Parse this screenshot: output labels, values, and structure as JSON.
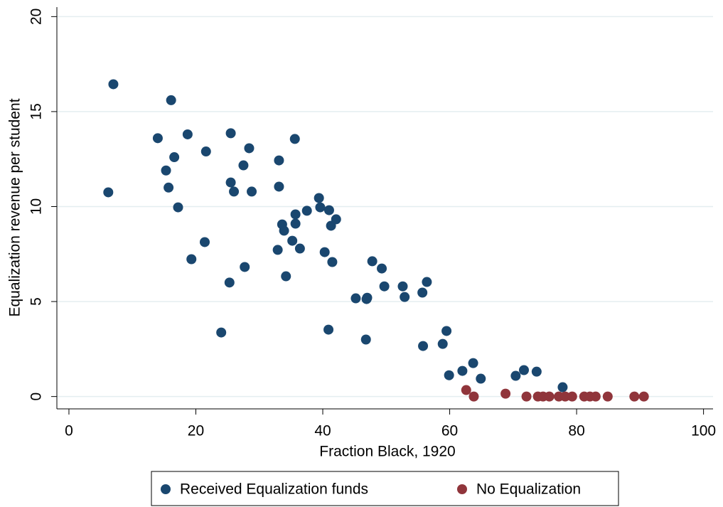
{
  "chart_data": {
    "type": "scatter",
    "xlabel": "Fraction Black, 1920",
    "ylabel": "Equalization revenue per student",
    "xlim": [
      -1.9,
      101.5
    ],
    "ylim": [
      -0.65,
      20.5
    ],
    "xticks": [
      0,
      20,
      40,
      60,
      80,
      100
    ],
    "yticks": [
      0,
      5,
      10,
      15,
      20
    ],
    "grid": true,
    "legend": "bottom",
    "series": [
      {
        "name": "Received Equalization funds",
        "color": "#1a476f",
        "x": [
          6.2,
          7.0,
          14.0,
          15.3,
          15.7,
          16.1,
          16.6,
          17.2,
          18.7,
          19.3,
          21.4,
          21.6,
          24.0,
          25.3,
          25.5,
          25.5,
          26.0,
          27.5,
          27.7,
          28.4,
          28.8,
          32.9,
          33.1,
          33.1,
          33.6,
          33.9,
          34.2,
          35.2,
          35.6,
          35.7,
          35.7,
          36.4,
          37.5,
          39.4,
          39.6,
          40.3,
          40.9,
          41.0,
          41.3,
          41.5,
          42.1,
          45.2,
          46.8,
          46.9,
          47.0,
          47.8,
          49.3,
          49.7,
          52.6,
          52.9,
          55.7,
          55.8,
          56.4,
          58.9,
          59.5,
          59.9,
          62.0,
          63.7,
          64.9,
          70.4,
          71.7,
          73.7,
          77.8
        ],
        "values": [
          10.75,
          16.44,
          13.6,
          11.9,
          11.0,
          15.6,
          12.6,
          9.96,
          13.8,
          7.23,
          8.13,
          12.9,
          3.37,
          6.0,
          13.86,
          11.27,
          10.79,
          12.17,
          6.82,
          13.07,
          10.79,
          7.72,
          12.43,
          11.05,
          9.06,
          8.73,
          6.33,
          8.2,
          13.56,
          9.59,
          9.1,
          7.79,
          9.78,
          10.45,
          9.96,
          7.6,
          3.52,
          9.81,
          8.99,
          7.08,
          9.33,
          5.17,
          3.0,
          5.13,
          5.2,
          7.12,
          6.74,
          5.8,
          5.8,
          5.24,
          5.47,
          2.66,
          6.03,
          2.77,
          3.45,
          1.12,
          1.35,
          1.76,
          0.94,
          1.09,
          1.39,
          1.31,
          0.49
        ]
      },
      {
        "name": "No Equalization",
        "color": "#90353b",
        "x": [
          62.6,
          63.8,
          68.8,
          72.1,
          73.9,
          74.7,
          75.7,
          77.2,
          78.2,
          79.3,
          81.2,
          82.1,
          83.0,
          84.9,
          89.1,
          90.6
        ],
        "values": [
          0.34,
          0,
          0.15,
          0,
          0,
          0,
          0,
          0,
          0,
          0,
          0,
          0,
          0,
          0,
          0,
          0
        ]
      }
    ]
  }
}
